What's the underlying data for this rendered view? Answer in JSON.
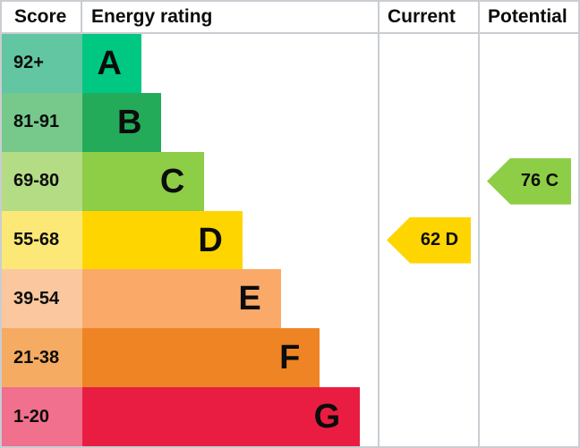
{
  "header": {
    "score": "Score",
    "energy_rating": "Energy rating",
    "current": "Current",
    "potential": "Potential"
  },
  "chart_data": {
    "type": "bar",
    "subtype": "epc-energy-rating-chart",
    "orientation": "horizontal",
    "columns": [
      "Score",
      "Energy rating",
      "Current",
      "Potential"
    ],
    "bands": [
      {
        "score": "92+",
        "letter": "A",
        "score_color": "#62c6a2",
        "bar_color": "#00c781",
        "bar_width_pct": 20.0
      },
      {
        "score": "81-91",
        "letter": "B",
        "score_color": "#76c98b",
        "bar_color": "#24ab59",
        "bar_width_pct": 26.8
      },
      {
        "score": "69-80",
        "letter": "C",
        "score_color": "#b3dc85",
        "bar_color": "#8dce46",
        "bar_width_pct": 41.3
      },
      {
        "score": "55-68",
        "letter": "D",
        "score_color": "#fce876",
        "bar_color": "#ffd500",
        "bar_width_pct": 54.2
      },
      {
        "score": "39-54",
        "letter": "E",
        "score_color": "#fbc79e",
        "bar_color": "#faa968",
        "bar_width_pct": 67.2
      },
      {
        "score": "21-38",
        "letter": "F",
        "score_color": "#f5ab62",
        "bar_color": "#ee8424",
        "bar_width_pct": 80.4
      },
      {
        "score": "1-20",
        "letter": "G",
        "score_color": "#f0708d",
        "bar_color": "#e91d42",
        "bar_width_pct": 94.0
      }
    ],
    "current": {
      "value": 62,
      "band": "D",
      "label": "62 D",
      "color": "#ffd500",
      "band_index": 3
    },
    "potential": {
      "value": 76,
      "band": "C",
      "label": "76 C",
      "color": "#8dce46",
      "band_index": 2
    }
  }
}
